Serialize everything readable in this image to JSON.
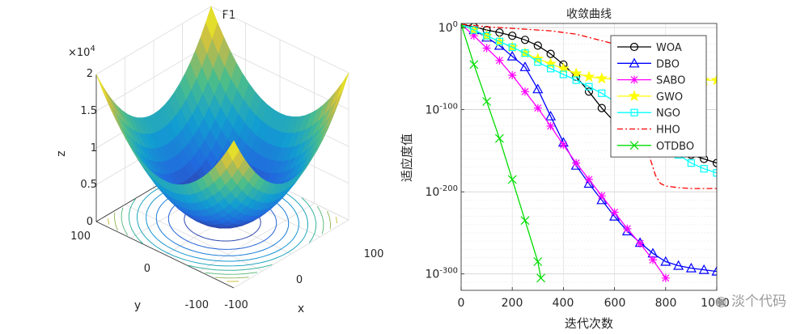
{
  "chart_data": [
    {
      "type": "surface3d",
      "title": "F1",
      "xlabel": "x",
      "ylabel": "y",
      "zlabel": "z",
      "z_exponent_label": "×10",
      "z_exponent": "4",
      "z_ticks": [
        "0",
        "0.5",
        "1",
        "1.5",
        "2"
      ],
      "x_ticks": [
        "-100",
        "0",
        "100"
      ],
      "y_ticks": [
        "-100",
        "0",
        "100"
      ],
      "xlim": [
        -100,
        100
      ],
      "ylim": [
        -100,
        100
      ],
      "zlim": [
        0,
        20000
      ],
      "function": "z = x^2 + y^2",
      "contour_levels": 11
    },
    {
      "type": "line",
      "title": "收敛曲线",
      "xlabel": "迭代次数",
      "ylabel": "适应度值",
      "yscale": "log",
      "xlim": [
        0,
        1000
      ],
      "ylim_log10": [
        -320,
        5
      ],
      "x_ticks": [
        "0",
        "200",
        "400",
        "600",
        "800",
        "1000"
      ],
      "y_ticks": [
        {
          "exp": 0,
          "base": "10",
          "power": "0"
        },
        {
          "exp": -100,
          "base": "10",
          "power": "-100"
        },
        {
          "exp": -200,
          "base": "10",
          "power": "-200"
        },
        {
          "exp": -300,
          "base": "10",
          "power": "-300"
        }
      ],
      "legend_position": "top-right",
      "series": [
        {
          "name": "WOA",
          "color": "#000000",
          "marker": "circle",
          "dash": "",
          "x": [
            0,
            50,
            100,
            150,
            200,
            250,
            300,
            350,
            400,
            450,
            500,
            550,
            600,
            650,
            700,
            750,
            800,
            850,
            900,
            950,
            1000
          ],
          "log10_y": [
            4,
            1,
            -3,
            -6,
            -10,
            -15,
            -22,
            -32,
            -45,
            -60,
            -78,
            -98,
            -115,
            -125,
            -133,
            -140,
            -145,
            -150,
            -155,
            -160,
            -165
          ]
        },
        {
          "name": "DBO",
          "color": "#0000ff",
          "marker": "triangle",
          "dash": "",
          "x": [
            0,
            50,
            100,
            150,
            200,
            250,
            300,
            350,
            400,
            450,
            500,
            550,
            600,
            650,
            700,
            750,
            800,
            850,
            900,
            950,
            1000
          ],
          "log10_y": [
            4,
            -3,
            -12,
            -22,
            -35,
            -48,
            -75,
            -108,
            -140,
            -168,
            -190,
            -210,
            -230,
            -248,
            -262,
            -275,
            -285,
            -290,
            -293,
            -295,
            -297
          ]
        },
        {
          "name": "SABO",
          "color": "#ff00ff",
          "marker": "star",
          "dash": "",
          "x": [
            0,
            50,
            100,
            150,
            200,
            250,
            300,
            350,
            400,
            450,
            500,
            550,
            600,
            650,
            700,
            750,
            800
          ],
          "log10_y": [
            4,
            -10,
            -25,
            -40,
            -58,
            -78,
            -98,
            -120,
            -143,
            -165,
            -185,
            -205,
            -225,
            -245,
            -263,
            -283,
            -305
          ]
        },
        {
          "name": "GWO",
          "color": "#ffff00",
          "marker": "pentagram",
          "dash": "",
          "x": [
            0,
            50,
            100,
            150,
            200,
            250,
            300,
            350,
            400,
            450,
            500,
            550,
            600,
            650,
            700,
            750,
            800,
            850,
            900,
            950,
            1000
          ],
          "log10_y": [
            4,
            -3,
            -10,
            -17,
            -24,
            -31,
            -38,
            -44,
            -50,
            -56,
            -60,
            -62,
            -63,
            -64,
            -64,
            -64,
            -64,
            -64,
            -64,
            -64,
            -64
          ]
        },
        {
          "name": "NGO",
          "color": "#00ffff",
          "marker": "square",
          "dash": "",
          "x": [
            0,
            50,
            100,
            150,
            200,
            250,
            300,
            350,
            400,
            450,
            500,
            550,
            600,
            650,
            700,
            750,
            800,
            850,
            900,
            950,
            1000
          ],
          "log10_y": [
            4,
            -3,
            -10,
            -17,
            -24,
            -31,
            -42,
            -50,
            -57,
            -64,
            -72,
            -80,
            -90,
            -100,
            -110,
            -120,
            -135,
            -155,
            -165,
            -172,
            -177
          ]
        },
        {
          "name": "HHO",
          "color": "#ff0000",
          "marker": "none",
          "dash": "7 3 2 3",
          "x": [
            0,
            100,
            200,
            300,
            350,
            400,
            450,
            500,
            550,
            600,
            650,
            680,
            700,
            720,
            740,
            760,
            780,
            800,
            850,
            900,
            950,
            1000
          ],
          "log10_y": [
            4,
            1,
            -1,
            -3,
            -4,
            -6,
            -8,
            -12,
            -16,
            -20,
            -35,
            -70,
            -110,
            -140,
            -160,
            -180,
            -190,
            -193,
            -195,
            -196,
            -196,
            -196
          ]
        },
        {
          "name": "OTDBO",
          "color": "#00dd00",
          "marker": "x",
          "dash": "",
          "x": [
            0,
            50,
            100,
            150,
            200,
            250,
            300,
            312
          ],
          "log10_y": [
            4,
            -45,
            -90,
            -135,
            -185,
            -235,
            -285,
            -305
          ]
        }
      ]
    }
  ],
  "watermark": "淡个代码"
}
